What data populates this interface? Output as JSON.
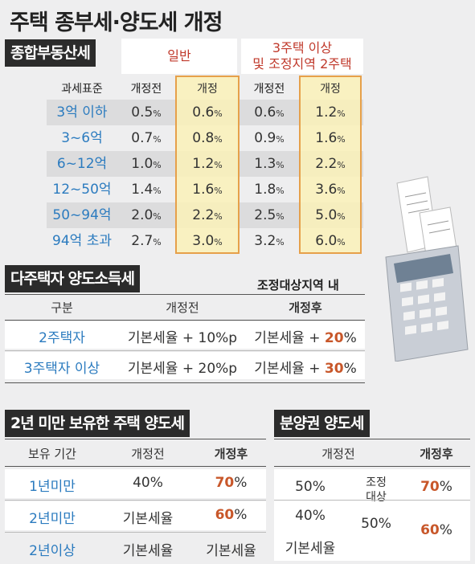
{
  "title": "주택 종부세·양도세 개정",
  "sec1": {
    "label": "종합부동산세",
    "group1": "일반",
    "group2_line1": "3주택 이상",
    "group2_line2": "및 조정지역 2주택",
    "headers": [
      "과세표준",
      "개정전",
      "개정",
      "개정전",
      "개정"
    ],
    "rows": [
      {
        "bracket": "3억 이하",
        "a": "0.5",
        "b": "0.6",
        "c": "0.6",
        "d": "1.2"
      },
      {
        "bracket": "3~6억",
        "a": "0.7",
        "b": "0.8",
        "c": "0.9",
        "d": "1.6"
      },
      {
        "bracket": "6~12억",
        "a": "1.0",
        "b": "1.2",
        "c": "1.3",
        "d": "2.2"
      },
      {
        "bracket": "12~50억",
        "a": "1.4",
        "b": "1.6",
        "c": "1.8",
        "d": "3.6"
      },
      {
        "bracket": "50~94억",
        "a": "2.0",
        "b": "2.2",
        "c": "2.5",
        "d": "5.0"
      },
      {
        "bracket": "94억 초과",
        "a": "2.7",
        "b": "3.0",
        "c": "3.2",
        "d": "6.0"
      }
    ],
    "pct": "%"
  },
  "sec2": {
    "label": "다주택자 양도소득세",
    "note": "조정대상지역 내",
    "headers": [
      "구분",
      "개정전",
      "개정후"
    ],
    "rows": [
      {
        "type": "2주택자",
        "before": "기본세율 + 10%p",
        "after_base": "기본세율 + ",
        "after_num": "20",
        "after_unit": "%"
      },
      {
        "type": "3주택자 이상",
        "before": "기본세율 + 20%p",
        "after_base": "기본세율 + ",
        "after_num": "30",
        "after_unit": "%"
      }
    ]
  },
  "sec3": {
    "label": "2년 미만 보유한 주택 양도세",
    "headers": [
      "보유 기간",
      "개정전",
      "개정후"
    ],
    "rows": [
      {
        "period": "1년미만",
        "before": "40%",
        "after_num": "70",
        "after_unit": "%"
      },
      {
        "period": "2년미만",
        "before": "기본세율",
        "after_num": "60",
        "after_unit": "%"
      },
      {
        "period": "2년이상",
        "before": "기본세율",
        "after_text": "기본세율"
      }
    ]
  },
  "sec4": {
    "label": "분양권 양도세",
    "headers": [
      "개정전",
      "개정후"
    ],
    "note_lines": [
      "조정",
      "대상"
    ],
    "before": [
      "50%",
      "40%",
      "50%",
      "기본세율"
    ],
    "after": [
      {
        "num": "70",
        "unit": "%"
      },
      {
        "num": "60",
        "unit": "%"
      }
    ]
  }
}
